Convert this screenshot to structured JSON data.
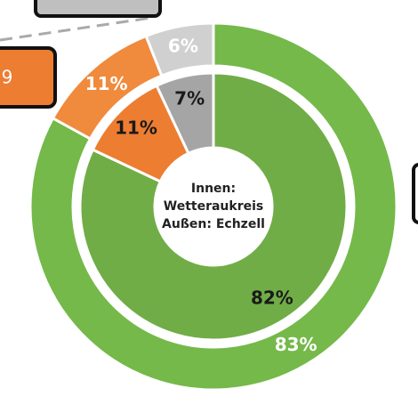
{
  "chart_data": {
    "type": "donut",
    "rings": [
      {
        "values": [
          82,
          11,
          7
        ],
        "value_labels": [
          "82%",
          "11%",
          "7%"
        ],
        "colors": [
          "#70ad47",
          "#ed7d31",
          "#a5a5a5"
        ],
        "label_color": "#1a1a1a"
      },
      {
        "values": [
          83,
          11,
          6
        ],
        "value_labels": [
          "83%",
          "11%",
          "6%"
        ],
        "colors": [
          "#74b94a",
          "#f08a3c",
          "#d0d0d0"
        ],
        "label_color": "#ffffff"
      }
    ],
    "center_text": [
      "Innen:",
      "Wetteraukreis",
      "Außen: Echzell"
    ],
    "callout_text": "9"
  }
}
